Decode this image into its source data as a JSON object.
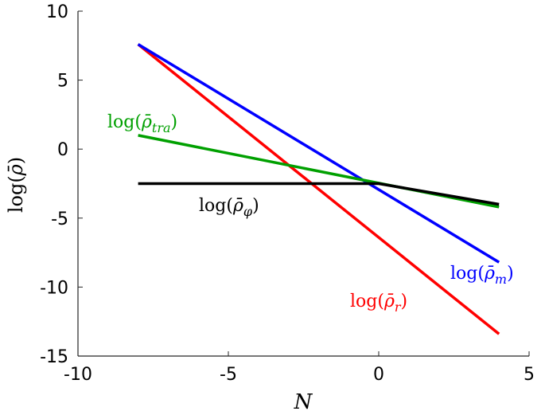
{
  "chart_data": {
    "type": "line",
    "xlabel": "N",
    "ylabel": {
      "base": "log(",
      "sym": "ρ̄",
      "close": ")"
    },
    "xlim": [
      -10,
      5
    ],
    "ylim": [
      -15,
      10
    ],
    "xticks": [
      -10,
      -5,
      0,
      5
    ],
    "yticks": [
      10,
      5,
      0,
      -5,
      -10,
      -15
    ],
    "grid": false,
    "series": [
      {
        "key": "red",
        "color": "#ff0000",
        "label": {
          "prefix": "log(",
          "sym": "ρ̄",
          "sub": "r",
          "suffix": ")"
        },
        "x": [
          -8,
          4
        ],
        "y": [
          7.6,
          -13.4
        ]
      },
      {
        "key": "blue",
        "color": "#0000ff",
        "label": {
          "prefix": "log(",
          "sym": "ρ̄",
          "sub": "m",
          "suffix": ")"
        },
        "x": [
          -8,
          4
        ],
        "y": [
          7.6,
          -8.2
        ]
      },
      {
        "key": "green",
        "color": "#00a000",
        "label": {
          "prefix": "log(",
          "sym": "ρ̄",
          "sub": "tra",
          "suffix": ")"
        },
        "x": [
          -8,
          4
        ],
        "y": [
          1.0,
          -4.2
        ]
      },
      {
        "key": "black",
        "color": "#000000",
        "label": {
          "prefix": "log(",
          "sym": "ρ̄",
          "sub": "φ",
          "suffix": ")"
        },
        "x": [
          -8,
          0,
          4
        ],
        "y": [
          -2.5,
          -2.5,
          -4.0
        ]
      }
    ]
  }
}
